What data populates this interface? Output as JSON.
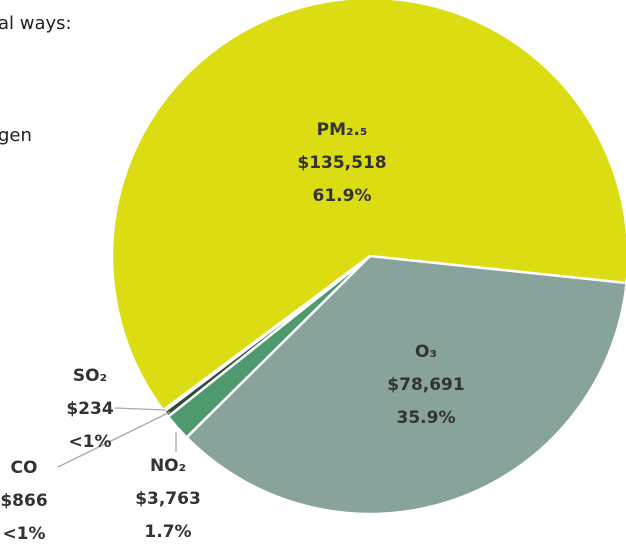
{
  "background_text": [
    "al ways:",
    "gen"
  ],
  "chart_data": {
    "type": "pie",
    "categories": [
      "PM₂.₅",
      "O₃",
      "NO₂",
      "CO",
      "SO₂"
    ],
    "values": [
      135518,
      78691,
      3763,
      866,
      234
    ],
    "value_labels": [
      "$135,518",
      "$78,691",
      "$3,763",
      "$866",
      "$234"
    ],
    "percent_labels": [
      "61.9%",
      "35.9%",
      "1.7%",
      "<1%",
      "<1%"
    ],
    "colors": [
      "#dcdc12",
      "#87a39c",
      "#4e9a6e",
      "#2d4b3b",
      "#1c3a2c"
    ]
  }
}
